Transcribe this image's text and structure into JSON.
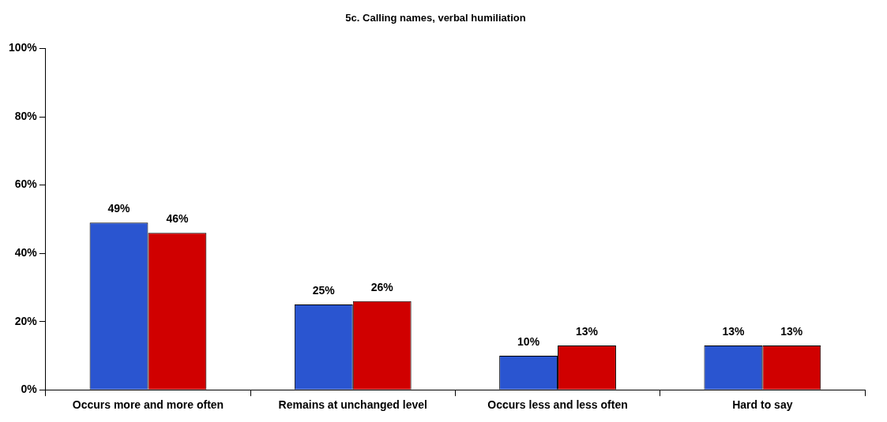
{
  "chart_data": {
    "type": "bar",
    "title": "5c. Calling names, verbal humiliation",
    "categories": [
      "Occurs more and more often",
      "Remains at unchanged level",
      "Occurs less and less often",
      "Hard to say"
    ],
    "series": [
      {
        "color": "#2a55d0",
        "values": [
          49,
          25,
          10,
          13
        ],
        "value_labels": [
          "49%",
          "25%",
          "10%",
          "13%"
        ]
      },
      {
        "color": "#d00000",
        "values": [
          46,
          26,
          13,
          13
        ],
        "value_labels": [
          "46%",
          "26%",
          "13%",
          "13%"
        ]
      }
    ],
    "ylim": [
      0,
      100
    ],
    "yticks": [
      {
        "value": 0,
        "label": "0%"
      },
      {
        "value": 20,
        "label": "20%"
      },
      {
        "value": 40,
        "label": "40%"
      },
      {
        "value": 60,
        "label": "60%"
      },
      {
        "value": 80,
        "label": "80%"
      },
      {
        "value": 100,
        "label": "100%"
      }
    ],
    "legend": false
  }
}
